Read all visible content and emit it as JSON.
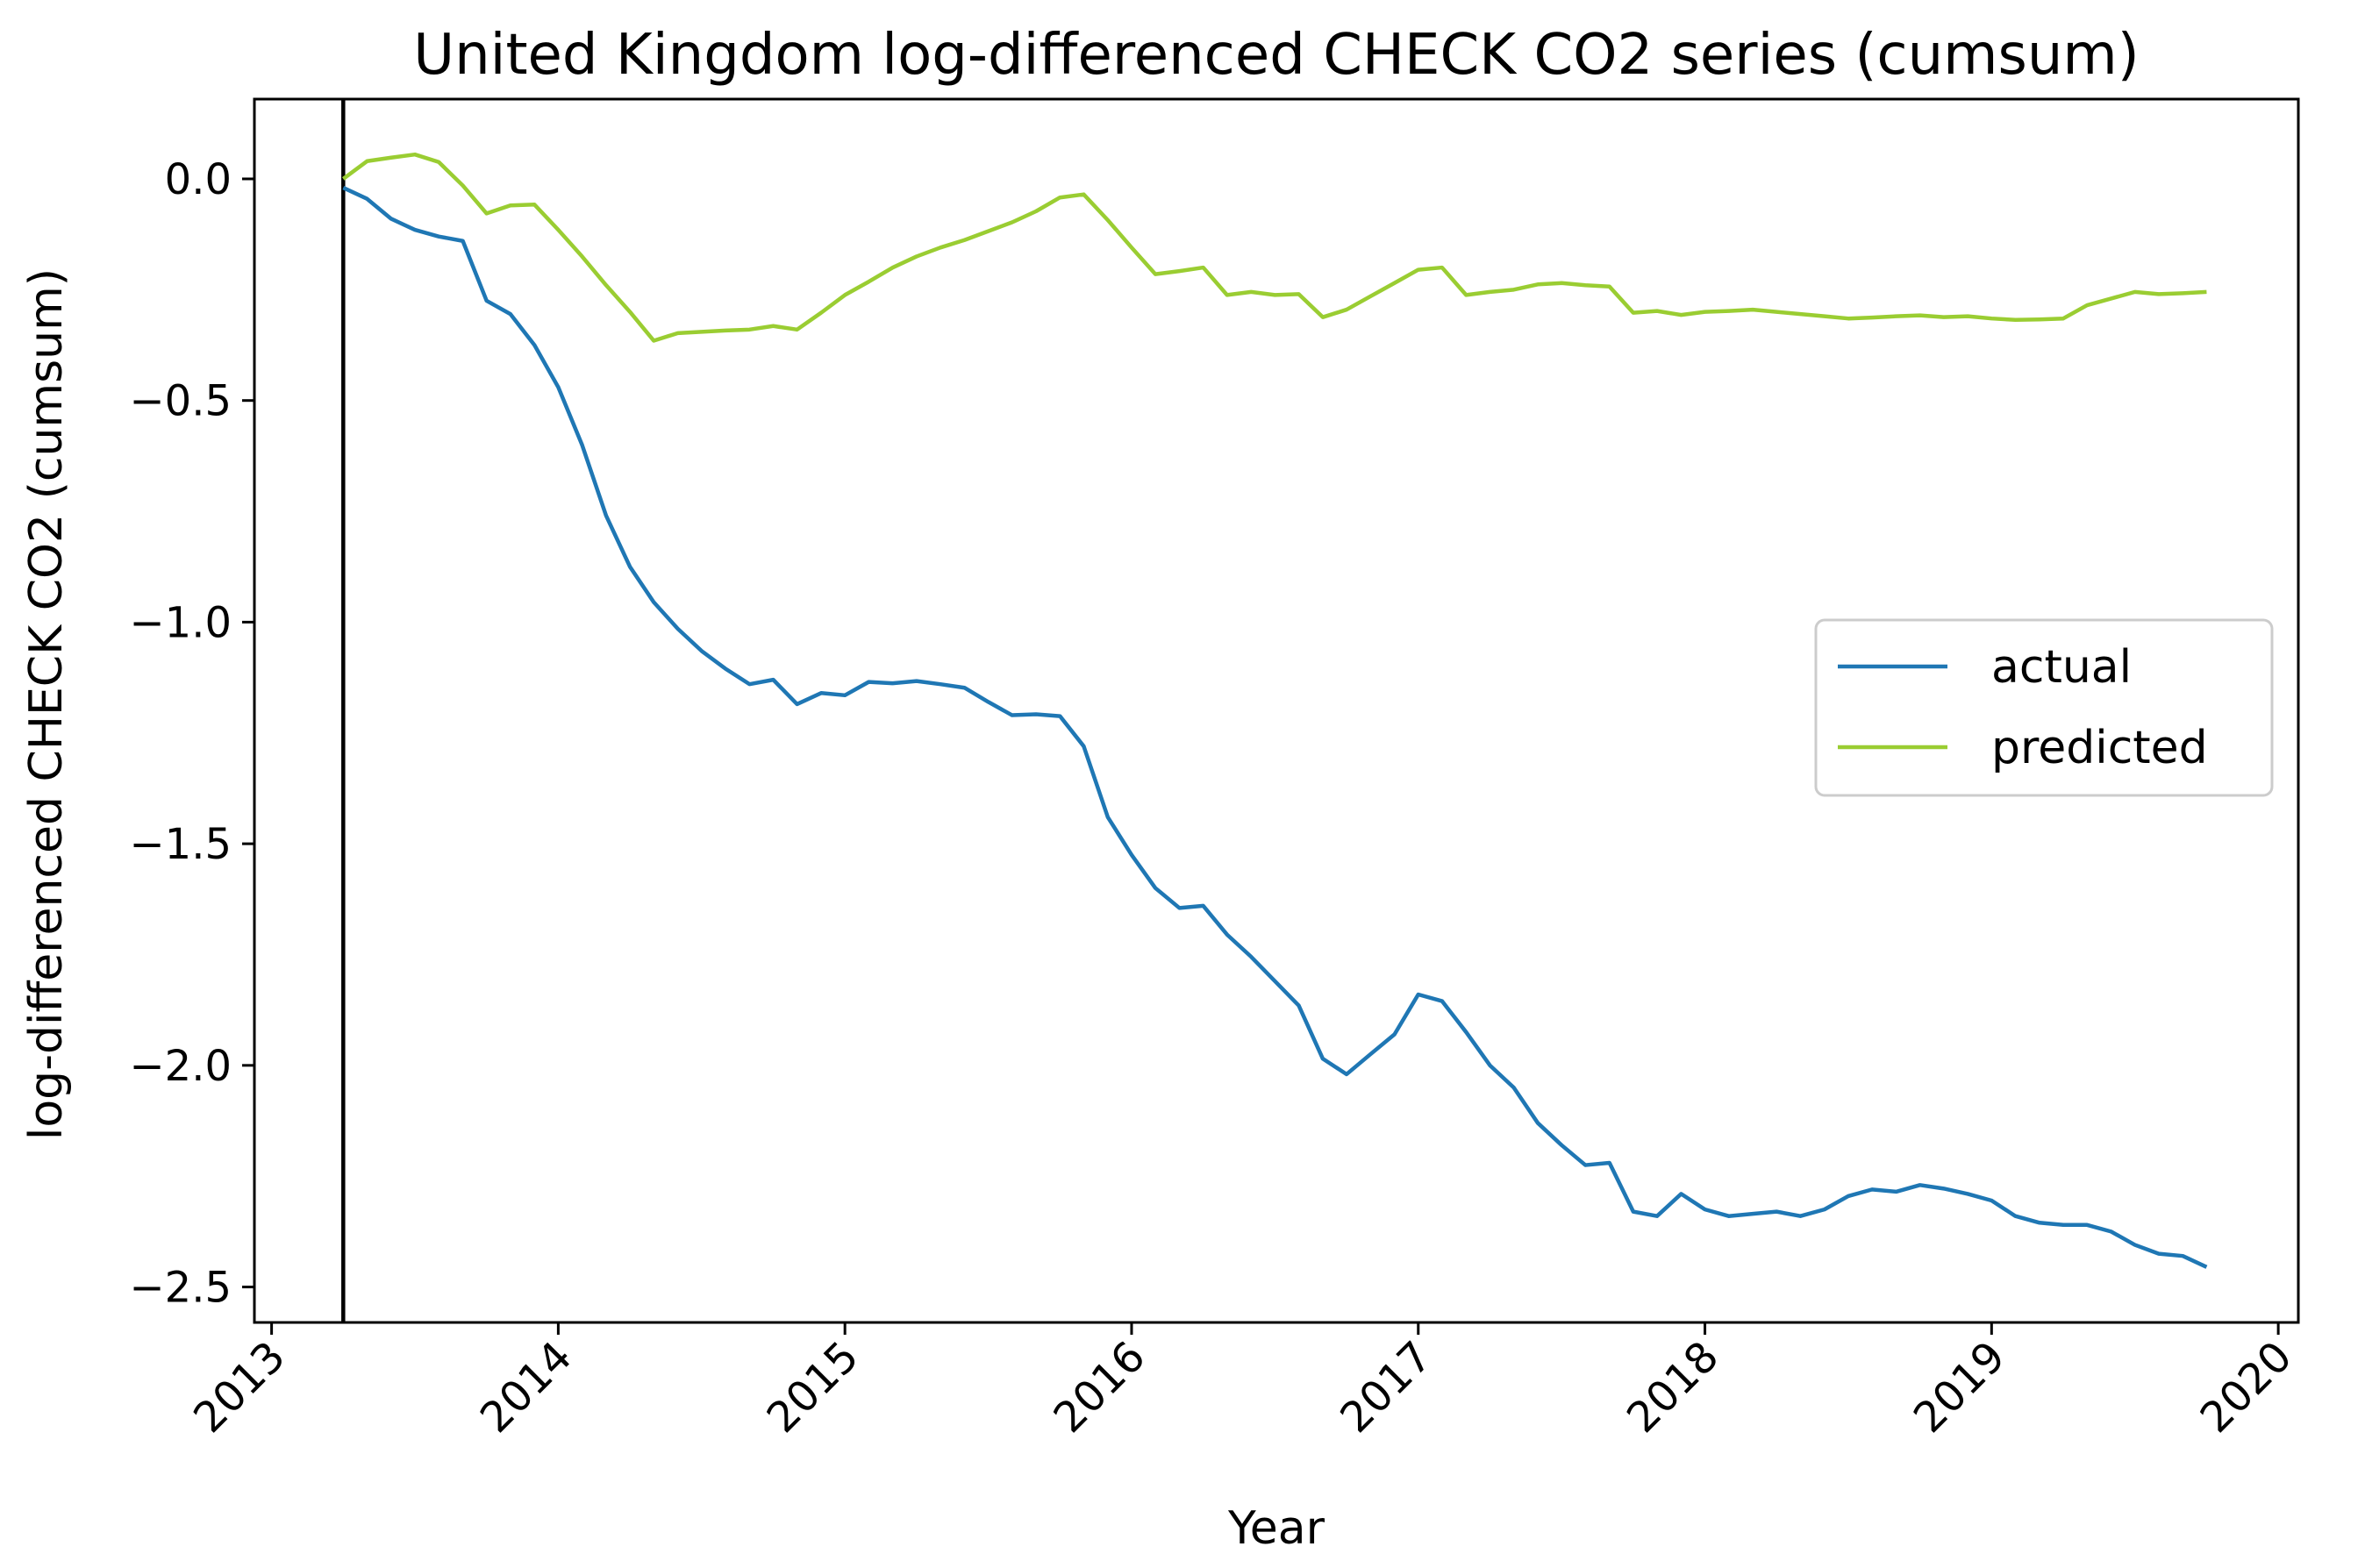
{
  "chart_data": {
    "type": "line",
    "title": "United Kingdom log-differenced CHECK CO2 series (cumsum)",
    "xlabel": "Year",
    "ylabel": "log-differenced CHECK CO2 (cumsum)",
    "xlim": [
      2012.94,
      2020.07
    ],
    "ylim": [
      -2.58,
      0.18
    ],
    "x_ticks": [
      2013,
      2014,
      2015,
      2016,
      2017,
      2018,
      2019,
      2020
    ],
    "y_ticks": [
      0.0,
      -0.5,
      -1.0,
      -1.5,
      -2.0,
      -2.5
    ],
    "y_tick_labels": [
      "0.0",
      "−0.5",
      "−1.0",
      "−1.5",
      "−2.0",
      "−2.5"
    ],
    "grid": false,
    "legend_position": "center-right",
    "vertical_line_x": 2013.25,
    "series": [
      {
        "name": "actual",
        "color": "#1f77b4",
        "x": [
          2013.25,
          2013.333,
          2013.417,
          2013.5,
          2013.583,
          2013.667,
          2013.75,
          2013.833,
          2013.917,
          2014.0,
          2014.083,
          2014.167,
          2014.25,
          2014.333,
          2014.417,
          2014.5,
          2014.583,
          2014.667,
          2014.75,
          2014.833,
          2014.917,
          2015.0,
          2015.083,
          2015.167,
          2015.25,
          2015.333,
          2015.417,
          2015.5,
          2015.583,
          2015.667,
          2015.75,
          2015.833,
          2015.917,
          2016.0,
          2016.083,
          2016.167,
          2016.25,
          2016.333,
          2016.417,
          2016.5,
          2016.583,
          2016.667,
          2016.75,
          2016.833,
          2016.917,
          2017.0,
          2017.083,
          2017.167,
          2017.25,
          2017.333,
          2017.417,
          2017.5,
          2017.583,
          2017.667,
          2017.75,
          2017.833,
          2017.917,
          2018.0,
          2018.083,
          2018.167,
          2018.25,
          2018.333,
          2018.417,
          2018.5,
          2018.583,
          2018.667,
          2018.75,
          2018.833,
          2018.917,
          2019.0,
          2019.083,
          2019.167,
          2019.25,
          2019.333,
          2019.417,
          2019.5,
          2019.583,
          2019.667,
          2019.75
        ],
        "values": [
          -0.02,
          -0.045,
          -0.09,
          -0.115,
          -0.13,
          -0.14,
          -0.275,
          -0.305,
          -0.375,
          -0.47,
          -0.6,
          -0.76,
          -0.875,
          -0.955,
          -1.015,
          -1.065,
          -1.105,
          -1.14,
          -1.13,
          -1.185,
          -1.16,
          -1.165,
          -1.135,
          -1.138,
          -1.133,
          -1.14,
          -1.148,
          -1.18,
          -1.21,
          -1.208,
          -1.212,
          -1.28,
          -1.44,
          -1.525,
          -1.6,
          -1.645,
          -1.64,
          -1.705,
          -1.755,
          -1.81,
          -1.865,
          -1.985,
          -2.02,
          -1.975,
          -1.93,
          -1.84,
          -1.855,
          -1.925,
          -2.0,
          -2.05,
          -2.13,
          -2.18,
          -2.225,
          -2.22,
          -2.33,
          -2.34,
          -2.29,
          -2.325,
          -2.34,
          -2.335,
          -2.33,
          -2.34,
          -2.325,
          -2.295,
          -2.28,
          -2.285,
          -2.27,
          -2.278,
          -2.29,
          -2.305,
          -2.34,
          -2.355,
          -2.36,
          -2.36,
          -2.375,
          -2.405,
          -2.425,
          -2.43,
          -2.455
        ]
      },
      {
        "name": "predicted",
        "color": "#9acd32",
        "x": [
          2013.25,
          2013.333,
          2013.417,
          2013.5,
          2013.583,
          2013.667,
          2013.75,
          2013.833,
          2013.917,
          2014.0,
          2014.083,
          2014.167,
          2014.25,
          2014.333,
          2014.417,
          2014.5,
          2014.583,
          2014.667,
          2014.75,
          2014.833,
          2014.917,
          2015.0,
          2015.083,
          2015.167,
          2015.25,
          2015.333,
          2015.417,
          2015.5,
          2015.583,
          2015.667,
          2015.75,
          2015.833,
          2015.917,
          2016.0,
          2016.083,
          2016.167,
          2016.25,
          2016.333,
          2016.417,
          2016.5,
          2016.583,
          2016.667,
          2016.75,
          2016.833,
          2016.917,
          2017.0,
          2017.083,
          2017.167,
          2017.25,
          2017.333,
          2017.417,
          2017.5,
          2017.583,
          2017.667,
          2017.75,
          2017.833,
          2017.917,
          2018.0,
          2018.083,
          2018.167,
          2018.25,
          2018.333,
          2018.417,
          2018.5,
          2018.583,
          2018.667,
          2018.75,
          2018.833,
          2018.917,
          2019.0,
          2019.083,
          2019.167,
          2019.25,
          2019.333,
          2019.417,
          2019.5,
          2019.583,
          2019.667,
          2019.75
        ],
        "values": [
          0.0,
          0.04,
          0.048,
          0.055,
          0.038,
          -0.015,
          -0.078,
          -0.06,
          -0.058,
          -0.115,
          -0.175,
          -0.24,
          -0.3,
          -0.365,
          -0.348,
          -0.345,
          -0.342,
          -0.34,
          -0.332,
          -0.34,
          -0.302,
          -0.262,
          -0.232,
          -0.2,
          -0.175,
          -0.155,
          -0.138,
          -0.118,
          -0.098,
          -0.073,
          -0.042,
          -0.035,
          -0.093,
          -0.155,
          -0.215,
          -0.208,
          -0.2,
          -0.262,
          -0.255,
          -0.262,
          -0.26,
          -0.312,
          -0.295,
          -0.265,
          -0.235,
          -0.205,
          -0.2,
          -0.262,
          -0.255,
          -0.25,
          -0.238,
          -0.235,
          -0.24,
          -0.243,
          -0.302,
          -0.298,
          -0.307,
          -0.3,
          -0.298,
          -0.295,
          -0.3,
          -0.305,
          -0.31,
          -0.315,
          -0.313,
          -0.31,
          -0.308,
          -0.312,
          -0.31,
          -0.315,
          -0.318,
          -0.317,
          -0.315,
          -0.285,
          -0.27,
          -0.255,
          -0.26,
          -0.258,
          -0.255
        ]
      }
    ]
  }
}
